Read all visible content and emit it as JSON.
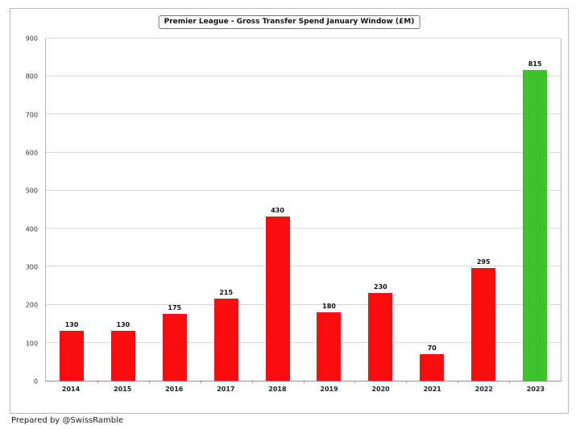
{
  "footer": {
    "credit": "Prepared by @SwissRamble"
  },
  "colors": {
    "bar_red": "#f90d0d",
    "bar_green": "#3ec22b",
    "gridline": "#d9d9d9",
    "axis": "#8f8f8f"
  },
  "chart_data": {
    "type": "bar",
    "title": "Premier League - Gross Transfer Spend January Window (£M)",
    "categories": [
      "2014",
      "2015",
      "2016",
      "2017",
      "2018",
      "2019",
      "2020",
      "2021",
      "2022",
      "2023"
    ],
    "values": [
      130,
      130,
      175,
      215,
      430,
      180,
      230,
      70,
      295,
      815
    ],
    "bar_colors": [
      "#f90d0d",
      "#f90d0d",
      "#f90d0d",
      "#f90d0d",
      "#f90d0d",
      "#f90d0d",
      "#f90d0d",
      "#f90d0d",
      "#f90d0d",
      "#3ec22b"
    ],
    "highlight_index": 9,
    "xlabel": "",
    "ylabel": "",
    "ylim": [
      0,
      900
    ],
    "yticks": [
      0,
      100,
      200,
      300,
      400,
      500,
      600,
      700,
      800,
      900
    ],
    "grid": true,
    "legend": "none",
    "data_labels": true
  }
}
